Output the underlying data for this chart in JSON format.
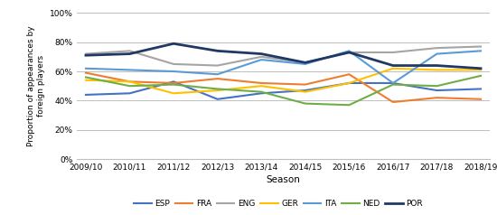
{
  "seasons": [
    "2009/10",
    "2010/11",
    "2011/12",
    "2012/13",
    "2013/14",
    "2014/15",
    "2015/16",
    "2016/17",
    "2017/18",
    "2018/19"
  ],
  "series": {
    "ESP": {
      "values": [
        0.44,
        0.45,
        0.53,
        0.41,
        0.45,
        0.47,
        0.52,
        0.52,
        0.47,
        0.48
      ],
      "color": "#4472C4",
      "linewidth": 1.5
    },
    "FRA": {
      "values": [
        0.59,
        0.53,
        0.52,
        0.55,
        0.52,
        0.51,
        0.58,
        0.39,
        0.42,
        0.41
      ],
      "color": "#ED7D31",
      "linewidth": 1.5
    },
    "ENG": {
      "values": [
        0.72,
        0.74,
        0.65,
        0.64,
        0.7,
        0.66,
        0.73,
        0.73,
        0.76,
        0.77
      ],
      "color": "#A5A5A5",
      "linewidth": 1.5
    },
    "GER": {
      "values": [
        0.54,
        0.53,
        0.45,
        0.47,
        0.5,
        0.46,
        0.52,
        0.62,
        0.61,
        0.61
      ],
      "color": "#FFC000",
      "linewidth": 1.5
    },
    "ITA": {
      "values": [
        0.62,
        0.61,
        0.6,
        0.58,
        0.68,
        0.65,
        0.74,
        0.52,
        0.72,
        0.74
      ],
      "color": "#5B9BD5",
      "linewidth": 1.5
    },
    "NED": {
      "values": [
        0.56,
        0.5,
        0.51,
        0.48,
        0.46,
        0.38,
        0.37,
        0.51,
        0.5,
        0.57
      ],
      "color": "#70AD47",
      "linewidth": 1.5
    },
    "POR": {
      "values": [
        0.71,
        0.72,
        0.79,
        0.74,
        0.72,
        0.66,
        0.73,
        0.64,
        0.64,
        0.62
      ],
      "color": "#1F3864",
      "linewidth": 2.0
    }
  },
  "ylabel": "Proportion of appearances by\nforeign players",
  "xlabel": "Season",
  "ylim": [
    0.0,
    1.0
  ],
  "yticks": [
    0.0,
    0.2,
    0.4,
    0.6,
    0.8,
    1.0
  ],
  "legend_order": [
    "ESP",
    "FRA",
    "ENG",
    "GER",
    "ITA",
    "NED",
    "POR"
  ],
  "background_color": "#FFFFFF",
  "grid_color": "#BFBFBF"
}
